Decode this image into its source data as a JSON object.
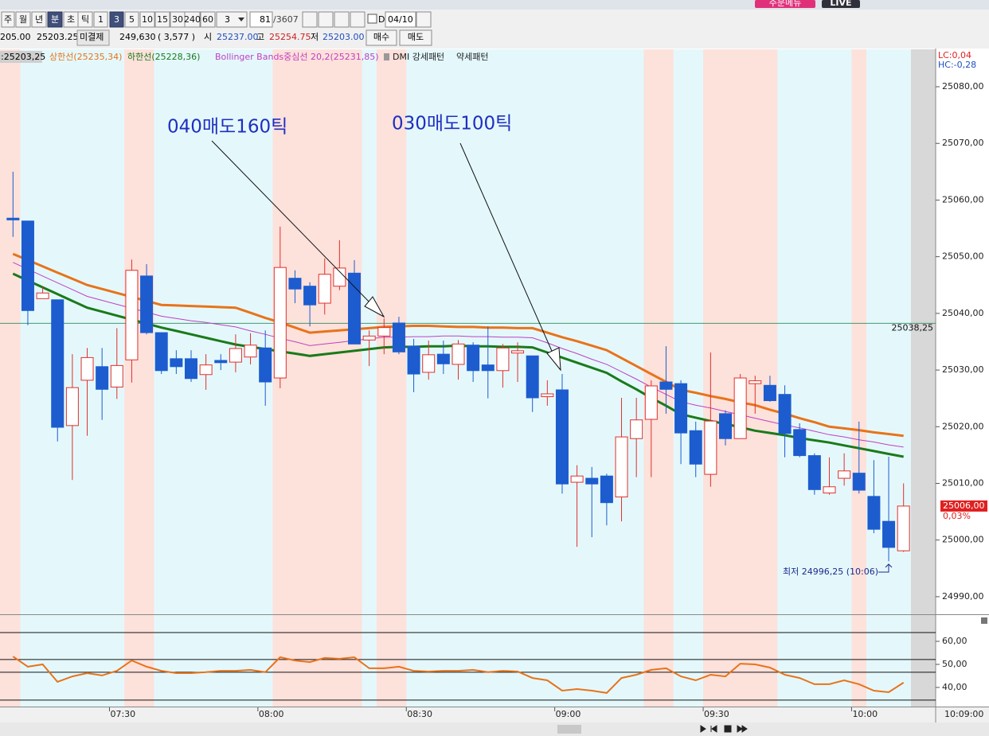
{
  "toolbar": {
    "buttons": [
      "주",
      "월",
      "년",
      "분",
      "초",
      "틱",
      "1",
      "3",
      "5",
      "10",
      "15",
      "30",
      "240",
      "60"
    ],
    "count": "3",
    "bars": "81",
    "total": "/3607",
    "d": "D",
    "date": "04/10",
    "order_menu": "주문메뉴",
    "live": "LIVE"
  },
  "quote_bar": {
    "prev": "205.00",
    "last": "25203.25",
    "oi_label": "미결제",
    "oi": "249,630",
    "oi_change": "( 3,577 )",
    "open_label": "시",
    "open": "25237.00",
    "high_label": "고",
    "high": "25254.75",
    "low_label": "저",
    "low": "25203.00",
    "buy": "매수",
    "sell": "매도"
  },
  "chart_data": [
    {
      "type": "candlestick",
      "legend_lead": ":25203,25",
      "categories": [
        null,
        null,
        null,
        null,
        null,
        null,
        null,
        "07:30",
        null,
        null,
        null,
        null,
        null,
        null,
        null,
        null,
        null,
        "08:00",
        null,
        null,
        null,
        null,
        null,
        null,
        null,
        null,
        null,
        "08:30",
        null,
        null,
        null,
        null,
        null,
        null,
        null,
        null,
        null,
        "09:00",
        null,
        null,
        null,
        null,
        null,
        null,
        null,
        null,
        null,
        "09:30",
        null,
        null,
        null,
        null,
        null,
        null,
        null,
        null,
        null,
        "10:00",
        null,
        null,
        null
      ],
      "current_time": "10:09:00",
      "open": [
        25056.8,
        25056.3,
        25042.6,
        25042.4,
        25020.2,
        25028.2,
        25030.6,
        25027.0,
        25031.8,
        25046.6,
        25036.6,
        25032.0,
        25032.0,
        25029.2,
        25031.7,
        25031.4,
        25032.3,
        25033.9,
        25028.6,
        25046.2,
        25044.8,
        25041.8,
        25044.8,
        25047.1,
        25035.3,
        25036.0,
        25038.3,
        25034.2,
        25029.6,
        25032.8,
        25031.0,
        25034.4,
        25030.9,
        25029.9,
        25033.0,
        25032.5,
        25025.3,
        25026.5,
        25010.2,
        25010.9,
        25011.3,
        25007.6,
        25017.9,
        25021.3,
        25027.9,
        25027.6,
        25019.3,
        25011.6,
        25022.3,
        25017.9,
        25027.6,
        25027.3,
        25025.7,
        25019.5,
        25014.9,
        25008.3,
        25010.9,
        25011.8,
        25007.7,
        25003.3,
        24998.1
      ],
      "high": [
        25065.0,
        25056.3,
        25044.7,
        25042.4,
        25032.8,
        25033.9,
        25033.9,
        25037.4,
        25049.5,
        25048.7,
        25036.6,
        25033.5,
        25033.5,
        25032.8,
        25032.8,
        25036.3,
        25036.5,
        25037.0,
        25055.3,
        25047.6,
        25045.5,
        25049.7,
        25052.9,
        25049.4,
        25037.0,
        25039.1,
        25039.4,
        25035.5,
        25035.2,
        25035.2,
        25035.3,
        25034.9,
        25037.7,
        25034.6,
        25034.9,
        25032.5,
        25028.2,
        25029.3,
        25013.2,
        25012.9,
        25011.7,
        25025.1,
        25025.1,
        25028.2,
        25034.2,
        25028.2,
        25020.9,
        25033.1,
        25022.9,
        25029.3,
        25029.0,
        25029.0,
        25027.3,
        25020.6,
        25015.3,
        25014.6,
        25015.3,
        25020.9,
        25014.1,
        25014.7,
        25010.0
      ],
      "low": [
        25053.5,
        25037.9,
        25042.6,
        25017.4,
        25010.6,
        25018.4,
        25021.2,
        25024.9,
        25027.8,
        25036.3,
        25029.3,
        25029.3,
        25027.9,
        25026.5,
        25030.0,
        25029.6,
        25031.0,
        25023.7,
        25026.8,
        25041.8,
        25037.7,
        25039.8,
        25044.1,
        25034.6,
        25030.7,
        25032.8,
        25032.8,
        25026.1,
        25028.3,
        25029.3,
        25028.3,
        25027.9,
        25025.0,
        25026.9,
        25027.9,
        25022.6,
        25023.7,
        25008.2,
        24998.8,
        25000.5,
        25002.6,
        25003.3,
        25011.1,
        25011.1,
        25022.3,
        25013.4,
        25011.1,
        25009.4,
        25016.7,
        25017.9,
        25022.3,
        25024.4,
        25014.6,
        25014.6,
        25008.0,
        25008.0,
        25009.6,
        25008.2,
        25001.2,
        24996.25,
        24997.9
      ],
      "close": [
        25056.5,
        25040.5,
        25043.6,
        25019.9,
        25026.9,
        25032.2,
        25026.6,
        25030.8,
        25047.6,
        25036.6,
        25029.9,
        25030.6,
        25028.5,
        25030.9,
        25031.3,
        25033.8,
        25034.4,
        25027.9,
        25048.1,
        25044.3,
        25041.5,
        25046.9,
        25048.0,
        25034.6,
        25036.0,
        25037.5,
        25033.2,
        25029.3,
        25032.7,
        25031.1,
        25034.6,
        25029.9,
        25029.9,
        25033.9,
        25033.4,
        25025.1,
        25025.8,
        25009.9,
        25011.3,
        25009.9,
        25006.6,
        25018.2,
        25021.2,
        25027.2,
        25026.6,
        25018.9,
        25013.4,
        25021.0,
        25017.9,
        25028.6,
        25028.1,
        25024.6,
        25018.8,
        25014.9,
        25008.9,
        25009.4,
        25012.2,
        25008.8,
        25001.9,
        24998.7,
        25006.0
      ],
      "up_color": "#e0302a",
      "down_color": "#1c5ccf",
      "series": [
        {
          "name": "상한선(25235,34)",
          "color": "#e8731a",
          "values": [
            25050.5,
            25049.4,
            25048.3,
            25047.2,
            25046.1,
            25045.0,
            25044.3,
            25043.6,
            25042.9,
            25042.2,
            25041.5,
            25041.4,
            25041.3,
            25041.2,
            25041.1,
            25041.0,
            25040.1,
            25039.2,
            25038.4,
            25037.5,
            25036.6,
            25036.8,
            25037.0,
            25037.2,
            25037.4,
            25037.6,
            25037.7,
            25037.8,
            25037.8,
            25037.7,
            25037.6,
            25037.6,
            25037.5,
            25037.5,
            25037.4,
            25037.4,
            25036.6,
            25035.8,
            25035.1,
            25034.3,
            25033.5,
            25032.1,
            25030.7,
            25029.3,
            25027.9,
            25026.5,
            25026.0,
            25025.4,
            25024.9,
            25024.3,
            25023.8,
            25023.0,
            25022.3,
            25021.5,
            25020.8,
            25020.0,
            25019.7,
            25019.4,
            25019.0,
            25018.7,
            25018.4
          ]
        },
        {
          "name": "하한선(25228,36)",
          "color": "#1a7a1a",
          "values": [
            25047.0,
            25045.8,
            25044.6,
            25043.4,
            25042.2,
            25041.0,
            25040.3,
            25039.6,
            25038.9,
            25038.2,
            25037.5,
            25036.9,
            25036.3,
            25035.7,
            25035.1,
            25034.5,
            25034.1,
            25033.7,
            25033.3,
            25032.9,
            25032.5,
            25032.8,
            25033.1,
            25033.4,
            25033.7,
            25034.0,
            25034.1,
            25034.1,
            25034.2,
            25034.2,
            25034.3,
            25034.2,
            25034.2,
            25034.1,
            25034.1,
            25034.0,
            25033.1,
            25032.2,
            25031.3,
            25030.4,
            25029.5,
            25028.0,
            25026.6,
            25025.1,
            25023.7,
            25022.2,
            25021.6,
            25021.0,
            25020.5,
            25019.9,
            25019.3,
            25018.9,
            25018.5,
            25018.0,
            25017.6,
            25017.2,
            25016.7,
            25016.2,
            25015.7,
            25015.2,
            25014.7
          ]
        },
        {
          "name": "Bollinger Bands중심선 20,2(25231,85)",
          "color": "#c040c0",
          "values": [
            25049.0,
            25047.8,
            25046.6,
            25045.4,
            25044.2,
            25043.0,
            25042.3,
            25041.6,
            25040.9,
            25040.2,
            25039.5,
            25039.1,
            25038.7,
            25038.4,
            25038.0,
            25037.6,
            25036.9,
            25036.3,
            25035.6,
            25035.0,
            25034.3,
            25034.6,
            25034.9,
            25035.2,
            25035.5,
            25035.8,
            25035.8,
            25035.9,
            25035.9,
            25036.0,
            25036.0,
            25035.9,
            25035.9,
            25035.8,
            25035.8,
            25035.7,
            25034.8,
            25033.8,
            25032.9,
            25031.9,
            25031.0,
            25029.7,
            25028.4,
            25027.0,
            25025.7,
            25024.4,
            25023.8,
            25023.3,
            25022.7,
            25022.1,
            25021.5,
            25020.9,
            25020.3,
            25019.8,
            25019.2,
            25018.6,
            25018.2,
            25017.7,
            25017.3,
            25016.8,
            25016.4
          ]
        }
      ],
      "pattern_legend": [
        "DMI 강세패턴",
        "약세패턴"
      ],
      "pattern_colors": {
        "strong": "#fde1db",
        "weak": "#e4f8fc"
      },
      "strong_pattern": [
        0,
        8,
        9,
        18,
        19,
        20,
        21,
        22,
        23,
        25,
        26,
        43,
        44,
        47,
        48,
        49,
        50,
        51,
        57
      ],
      "ylim": [
        24986.9,
        25086.6
      ],
      "yticks": [
        {
          "value": 24990,
          "label": "24990,00"
        },
        {
          "value": 25000,
          "label": "25000,00"
        },
        {
          "value": 25010,
          "label": "25010,00"
        },
        {
          "value": 25020,
          "label": "25020,00"
        },
        {
          "value": 25030,
          "label": "25030,00"
        },
        {
          "value": 25040,
          "label": "25040,00"
        },
        {
          "value": 25050,
          "label": "25050,00"
        },
        {
          "value": 25060,
          "label": "25060,00"
        },
        {
          "value": 25070,
          "label": "25070,00"
        },
        {
          "value": 25080,
          "label": "25080,00"
        }
      ],
      "ref_line": {
        "value": 25038.25,
        "label": "25038,25"
      },
      "current_price": {
        "value": 25006.0,
        "label": "25006,00"
      },
      "change": "0,03%",
      "lc": "LC:0,04",
      "hc": "HC:-0,28",
      "annotations": [
        {
          "text": "040매도160틱"
        },
        {
          "text": "030매도100틱"
        }
      ],
      "low_note": "최저 24996,25 (10:06)"
    },
    {
      "type": "line",
      "series": [
        {
          "color": "#e8731a",
          "values": [
            53.4,
            49.0,
            50.0,
            42.4,
            44.8,
            46.2,
            45.2,
            47.2,
            51.7,
            49.0,
            47.2,
            46.2,
            46.2,
            46.6,
            47.2,
            47.2,
            47.6,
            46.6,
            53.1,
            51.7,
            51.0,
            52.8,
            52.4,
            53.1,
            48.3,
            48.3,
            49.0,
            47.2,
            46.9,
            47.2,
            47.2,
            47.6,
            46.6,
            47.2,
            46.9,
            44.1,
            43.1,
            38.6,
            39.3,
            38.6,
            37.6,
            44.1,
            45.5,
            47.6,
            48.3,
            44.8,
            43.1,
            45.5,
            44.8,
            50.3,
            50.0,
            48.6,
            45.5,
            44.1,
            41.4,
            41.4,
            43.1,
            41.4,
            38.6,
            37.9,
            42.1
          ]
        }
      ],
      "ref_lines": [
        63.8,
        52.1,
        46.6,
        34.5
      ],
      "ylim": [
        31.7,
        71.4
      ],
      "yticks": [
        {
          "value": 40,
          "label": "40,00"
        },
        {
          "value": 50,
          "label": "50,00"
        },
        {
          "value": 60,
          "label": "60,00"
        }
      ]
    }
  ]
}
